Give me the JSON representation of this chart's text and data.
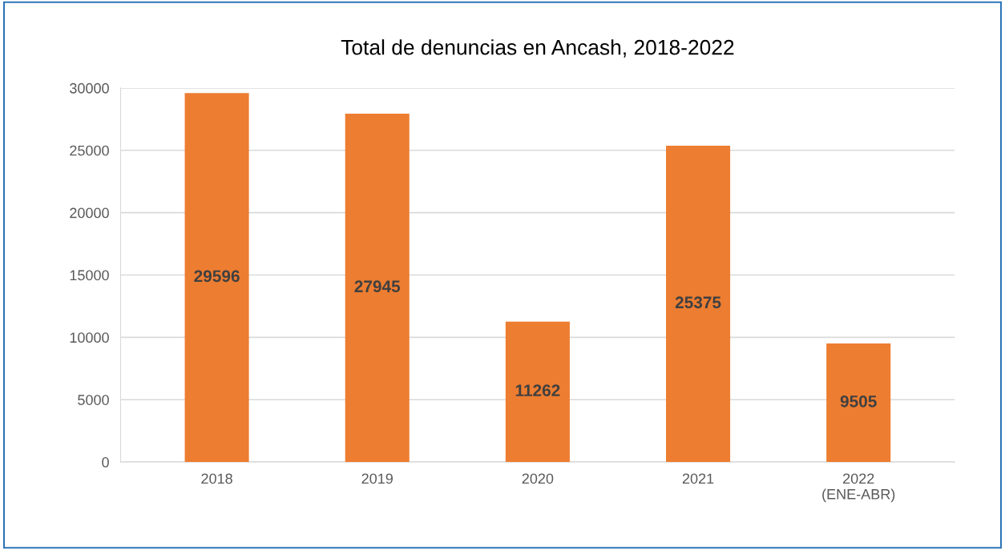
{
  "chart_data": {
    "type": "bar",
    "title": "Total de denuncias en Ancash, 2018-2022",
    "categories": [
      "2018",
      "2019",
      "2020",
      "2021",
      "2022\n(ENE-ABR)"
    ],
    "values": [
      29596,
      27945,
      11262,
      25375,
      9505
    ],
    "color": "#ed7d31",
    "ylim": [
      0,
      30000
    ],
    "yticks": [
      0,
      5000,
      10000,
      15000,
      20000,
      25000,
      30000
    ],
    "grid": "y",
    "data_labels": true
  }
}
